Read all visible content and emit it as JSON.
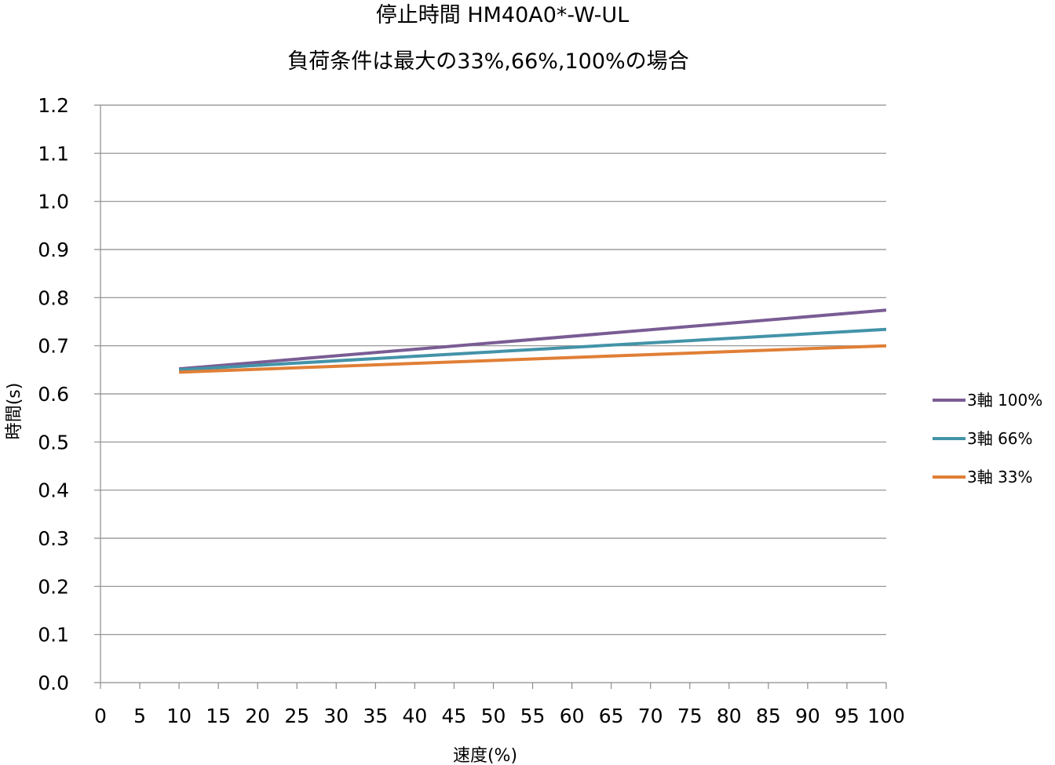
{
  "chart_data": {
    "type": "line",
    "title": "停止時間 HM40A0*-W-UL",
    "subtitle": "負荷条件は最大の33%,66%,100%の場合",
    "xlabel": "速度(%)",
    "ylabel": "時間(s)",
    "xlim": [
      0,
      100
    ],
    "ylim": [
      0,
      1.2
    ],
    "x_ticks": [
      "0",
      "5",
      "10",
      "15",
      "20",
      "25",
      "30",
      "35",
      "40",
      "45",
      "50",
      "55",
      "60",
      "65",
      "70",
      "75",
      "80",
      "85",
      "90",
      "95",
      "100"
    ],
    "y_ticks": [
      "0.0",
      "0.1",
      "0.2",
      "0.3",
      "0.4",
      "0.5",
      "0.6",
      "0.7",
      "0.8",
      "0.9",
      "1.0",
      "1.1",
      "1.2"
    ],
    "grid": true,
    "legend_position": "right",
    "series": [
      {
        "name": "3軸 100%",
        "color": "#7a5c94",
        "x": [
          10,
          100
        ],
        "y": [
          0.652,
          0.774
        ]
      },
      {
        "name": "3軸 66%",
        "color": "#4393a8",
        "x": [
          10,
          100
        ],
        "y": [
          0.65,
          0.734
        ]
      },
      {
        "name": "3軸 33%",
        "color": "#e07f36",
        "x": [
          10,
          100
        ],
        "y": [
          0.645,
          0.7
        ]
      }
    ]
  }
}
